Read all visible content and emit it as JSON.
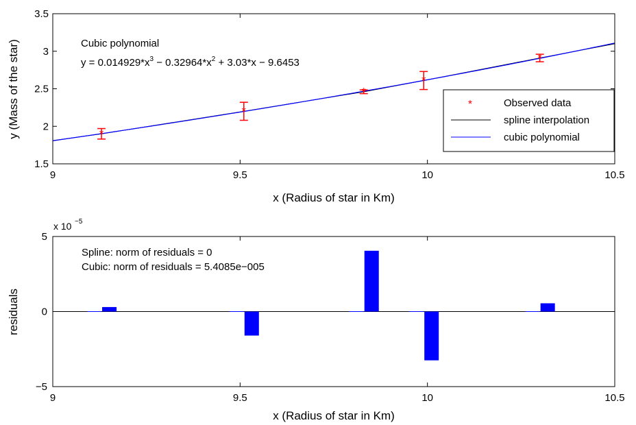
{
  "chart_data": [
    {
      "type": "line",
      "xlabel": "x (Radius of star in Km)",
      "ylabel": "y (Mass of the star)",
      "xlim": [
        9,
        10.5
      ],
      "ylim": [
        1.5,
        3.5
      ],
      "xticks": [
        9,
        9.5,
        10,
        10.5
      ],
      "xtick_labels": [
        "9",
        "9.5",
        "10",
        "10.5"
      ],
      "yticks": [
        1.5,
        2,
        2.5,
        3,
        3.5
      ],
      "ytick_labels": [
        "1.5",
        "2",
        "2.5",
        "3",
        "3.5"
      ],
      "grid": false,
      "annotations": [
        "Cubic polynomial",
        "y = 0.014929*x^3 − 0.32964*x^2 + 3.03*x − 9.6453"
      ],
      "annotation_parts": {
        "title": "Cubic polynomial",
        "eq_a": "y = 0.014929*x",
        "eq_e1": "3",
        "eq_b": " − 0.32964*x",
        "eq_e2": "2",
        "eq_c": " + 3.03*x − 9.6453"
      },
      "legend": {
        "position": "right",
        "entries": [
          "Observed data",
          "spline interpolation",
          "cubic polynomial"
        ]
      },
      "series": [
        {
          "name": "Observed data",
          "mode": "markers-with-errorbars",
          "color": "#ff0000",
          "marker": "*",
          "x": [
            9.13,
            9.51,
            9.83,
            9.99,
            10.3
          ],
          "y": [
            1.9,
            2.2,
            2.46,
            2.61,
            2.91
          ],
          "err": [
            0.07,
            0.12,
            0.025,
            0.12,
            0.05
          ]
        },
        {
          "name": "spline interpolation",
          "mode": "line",
          "color": "#000000",
          "x": [
            9,
            9.13,
            9.51,
            9.83,
            9.99,
            10.3,
            10.5
          ],
          "y": [
            1.81,
            1.9,
            2.2,
            2.46,
            2.61,
            2.91,
            3.1
          ]
        },
        {
          "name": "cubic polynomial",
          "mode": "line",
          "color": "#0000ff",
          "equation": [
            0.014929,
            -0.32964,
            3.03,
            -9.6453
          ]
        }
      ]
    },
    {
      "type": "bar",
      "xlabel": "x (Radius of star in Km)",
      "ylabel": "residuals",
      "xlim": [
        9,
        10.5
      ],
      "ylim": [
        -5e-05,
        5e-05
      ],
      "xticks": [
        9,
        9.5,
        10,
        10.5
      ],
      "xtick_labels": [
        "9",
        "9.5",
        "10",
        "10.5"
      ],
      "yticks": [
        -5e-05,
        0,
        5e-05
      ],
      "ytick_labels": [
        "−5",
        "0",
        "5"
      ],
      "exponent_base": "x 10",
      "exponent_power": "−5",
      "grid": false,
      "annotations": [
        "Spline: norm of residuals = 0",
        "Cubic: norm of residuals = 5.4085e−005"
      ],
      "bar_color": "#0000ff",
      "categories": [
        9.13,
        9.51,
        9.83,
        9.99,
        10.3
      ],
      "series": [
        {
          "name": "Spline",
          "values": [
            0,
            0,
            0,
            0,
            0
          ]
        },
        {
          "name": "Cubic",
          "values": [
            3e-06,
            -1.6e-05,
            4.05e-05,
            -3.25e-05,
            5.5e-06
          ]
        }
      ]
    }
  ]
}
